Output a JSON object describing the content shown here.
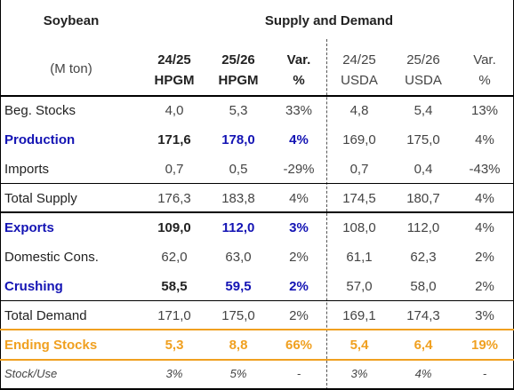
{
  "header": {
    "product": "Soybean",
    "section": "Supply and Demand",
    "unit": "(M ton)",
    "columns": [
      {
        "line1": "24/25",
        "line2": "HPGM"
      },
      {
        "line1": "25/26",
        "line2": "HPGM"
      },
      {
        "line1": "Var.",
        "line2": "%"
      },
      {
        "line1": "24/25",
        "line2": "USDA"
      },
      {
        "line1": "25/26",
        "line2": "USDA"
      },
      {
        "line1": "Var.",
        "line2": "%"
      }
    ]
  },
  "rows": [
    {
      "label": "Beg. Stocks",
      "values": [
        "4,0",
        "5,3",
        "33%",
        "4,8",
        "5,4",
        "13%"
      ]
    },
    {
      "label": "Production",
      "values": [
        "171,6",
        "178,0",
        "4%",
        "169,0",
        "175,0",
        "4%"
      ]
    },
    {
      "label": "Imports",
      "values": [
        "0,7",
        "0,5",
        "-29%",
        "0,7",
        "0,4",
        "-43%"
      ]
    },
    {
      "label": "Total Supply",
      "values": [
        "176,3",
        "183,8",
        "4%",
        "174,5",
        "180,7",
        "4%"
      ]
    },
    {
      "label": "Exports",
      "values": [
        "109,0",
        "112,0",
        "3%",
        "108,0",
        "112,0",
        "4%"
      ]
    },
    {
      "label": "Domestic Cons.",
      "values": [
        "62,0",
        "63,0",
        "2%",
        "61,1",
        "62,3",
        "2%"
      ]
    },
    {
      "label": "Crushing",
      "values": [
        "58,5",
        "59,5",
        "2%",
        "57,0",
        "58,0",
        "2%"
      ]
    },
    {
      "label": "Total Demand",
      "values": [
        "171,0",
        "175,0",
        "2%",
        "169,1",
        "174,3",
        "3%"
      ]
    },
    {
      "label": "Ending Stocks",
      "values": [
        "5,3",
        "8,8",
        "66%",
        "5,4",
        "6,4",
        "19%"
      ]
    },
    {
      "label": "Stock/Use",
      "values": [
        "3%",
        "5%",
        "-",
        "3%",
        "4%",
        "-"
      ]
    }
  ],
  "colors": {
    "highlight_blue": "#1414b4",
    "highlight_orange": "#f0a020"
  }
}
